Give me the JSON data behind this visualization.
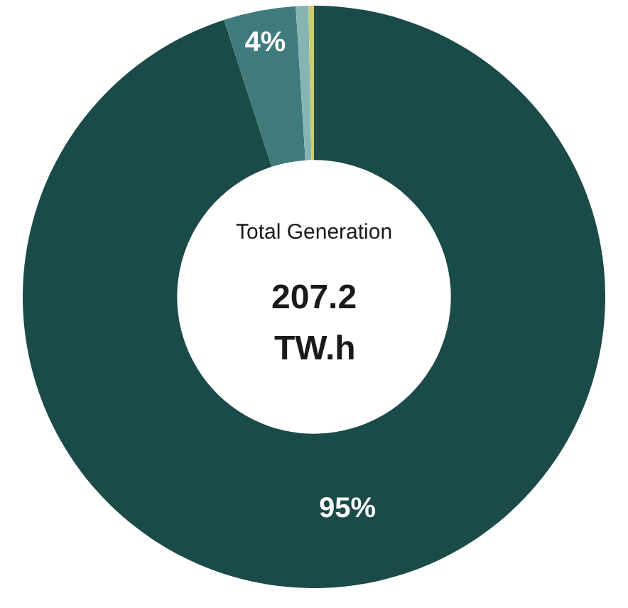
{
  "chart_data": {
    "type": "donut",
    "categories": [
      null,
      null,
      null,
      null
    ],
    "values": [
      95,
      4,
      0.7,
      0.3
    ],
    "colors": [
      "#1b4b48",
      "#3f7b7d",
      "#86b4b3",
      "#c9cc6e"
    ],
    "value_labels": [
      "95%",
      "4%",
      null,
      null
    ],
    "annotations": [
      "Total Generation",
      "207.2",
      "TW.h"
    ],
    "legend": false
  }
}
